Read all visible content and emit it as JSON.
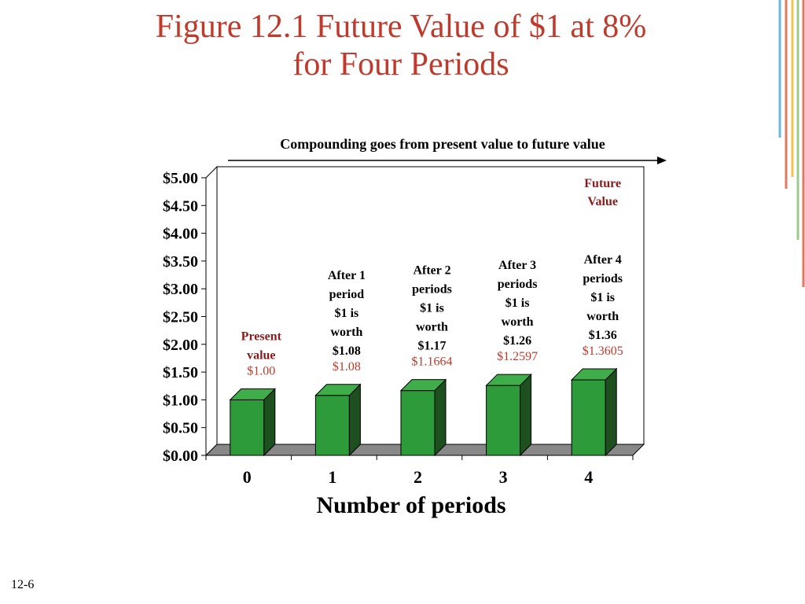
{
  "slide": {
    "title_line1": "Figure 12.1 Future Value of $1 at 8%",
    "title_line2": "for Four Periods",
    "number": "12-6"
  },
  "colors": {
    "title": "#c0392b",
    "bar_front": "#2e9b3a",
    "bar_side": "#1d4f1f",
    "bar_top": "#3fae4a",
    "value_label": "#c0392b",
    "annotation_accent": "#8b1a1a",
    "floor": "#888888"
  },
  "chart_data": {
    "type": "bar",
    "subtitle": "Compounding goes from present value to future value",
    "xlabel": "Number of periods",
    "ylabel": "",
    "categories": [
      "0",
      "1",
      "2",
      "3",
      "4"
    ],
    "values": [
      1.0,
      1.08,
      1.1664,
      1.2597,
      1.3605
    ],
    "value_labels": [
      "$1.00",
      "$1.08",
      "$1.1664",
      "$1.2597",
      "$1.3605"
    ],
    "ylim": [
      0,
      5
    ],
    "y_ticks": [
      "$0.00",
      "$0.50",
      "$1.00",
      "$1.50",
      "$2.00",
      "$2.50",
      "$3.00",
      "$3.50",
      "$4.00",
      "$4.50",
      "$5.00"
    ],
    "grid": false,
    "annotations": [
      {
        "lines": [
          "Present",
          "value"
        ],
        "accent": true
      },
      {
        "lines": [
          "After 1",
          "period",
          "$1 is",
          "worth",
          "$1.08"
        ],
        "accent": false
      },
      {
        "lines": [
          "After 2",
          "periods",
          "$1 is",
          "worth",
          "$1.17"
        ],
        "accent": false
      },
      {
        "lines": [
          "After 3",
          "periods",
          "$1 is",
          "worth",
          "$1.26"
        ],
        "accent": false
      },
      {
        "lines": [
          "After 4",
          "periods",
          "$1 is",
          "worth",
          "$1.36"
        ],
        "accent": false
      }
    ],
    "future_value_label": [
      "Future",
      "Value"
    ]
  }
}
